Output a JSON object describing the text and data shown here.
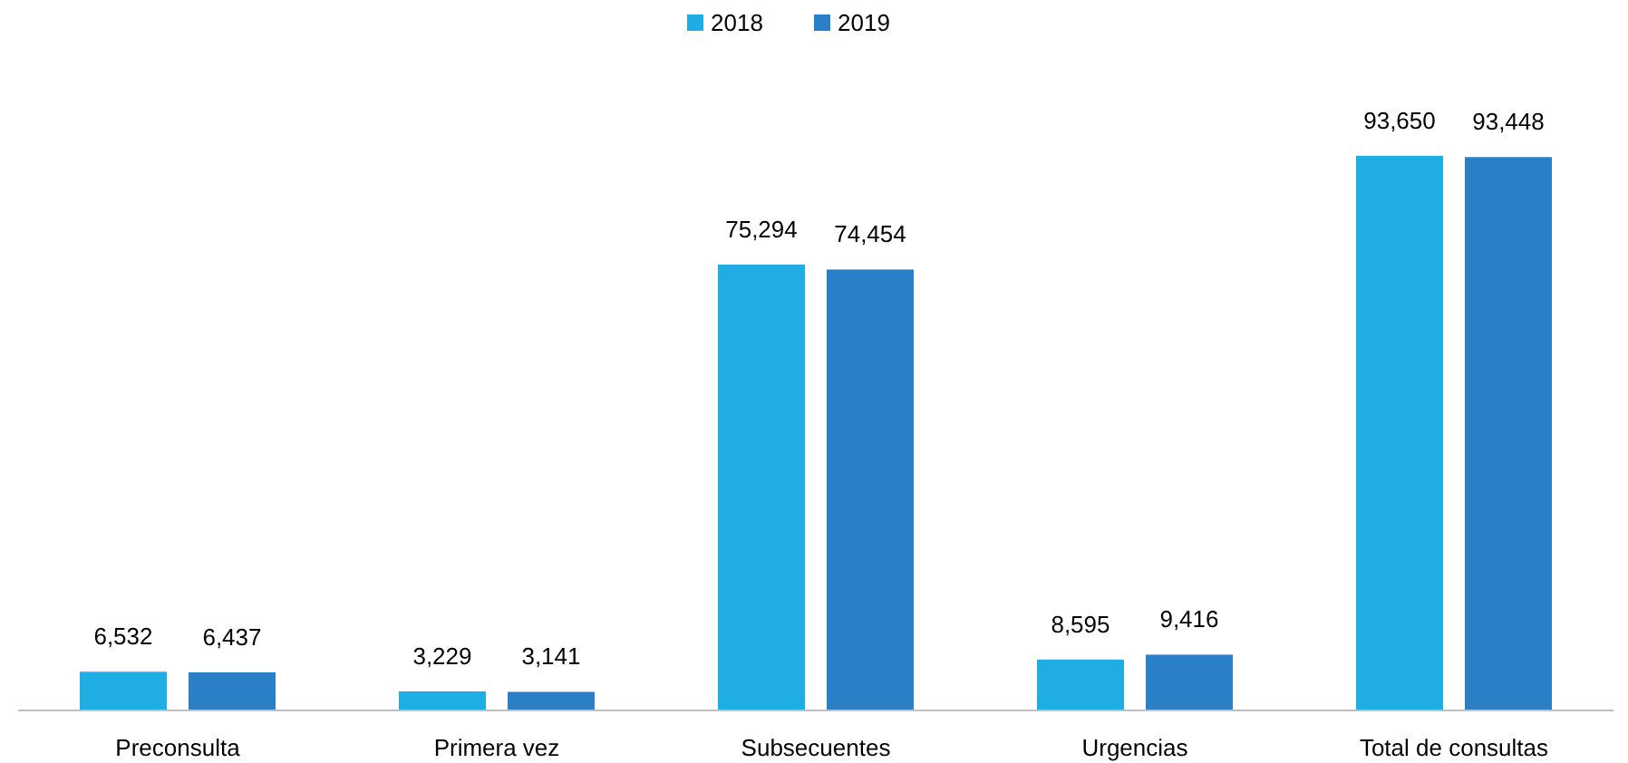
{
  "chart_data": {
    "type": "bar",
    "categories": [
      "Preconsulta",
      "Primera vez",
      "Subsecuentes",
      "Urgencias",
      "Total de consultas"
    ],
    "series": [
      {
        "name": "2018",
        "color": "#1fade4",
        "values": [
          6532,
          3229,
          75294,
          8595,
          93650
        ],
        "value_labels": [
          "6,532",
          "3,229",
          "75,294",
          "8,595",
          "93,650"
        ]
      },
      {
        "name": "2019",
        "color": "#2a7fc7",
        "values": [
          6437,
          3141,
          74454,
          9416,
          93448
        ],
        "value_labels": [
          "6,437",
          "3,141",
          "74,454",
          "9,416",
          "93,448"
        ]
      }
    ],
    "legend": "top"
  }
}
